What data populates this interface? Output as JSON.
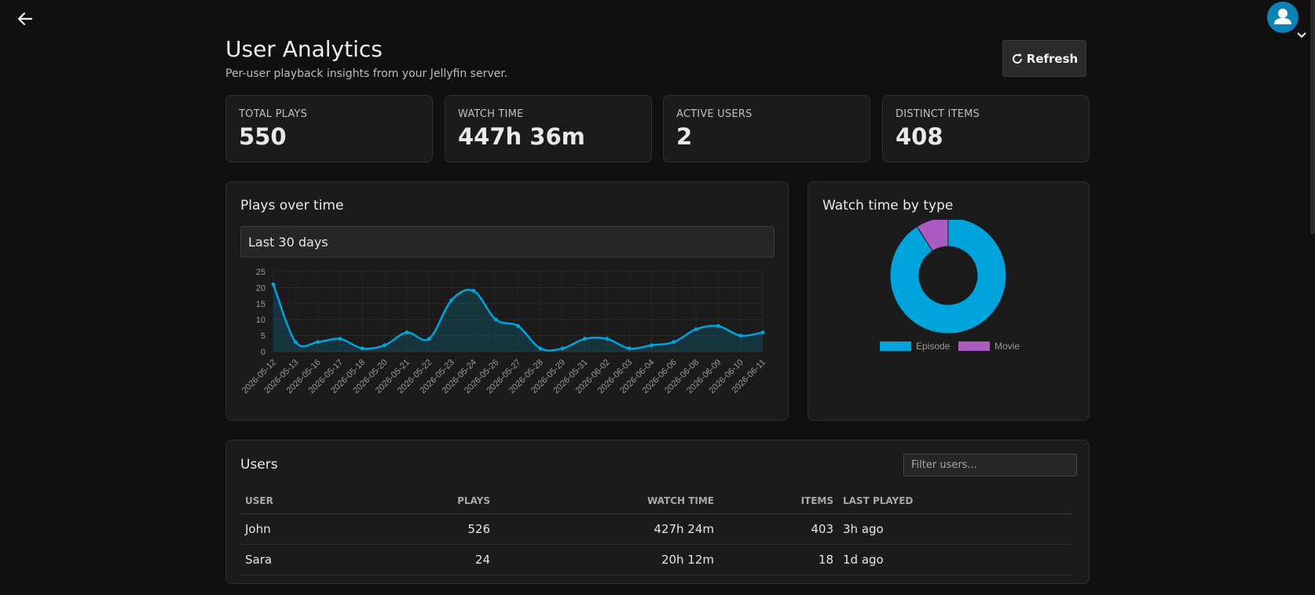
{
  "header": {
    "back_icon": "arrow-left-icon",
    "avatar_icon": "user-icon",
    "avatar_color": "#0c82b5"
  },
  "page": {
    "title": "User Analytics",
    "subtitle": "Per-user playback insights from your Jellyfin server.",
    "refresh_label": "Refresh",
    "refresh_icon": "refresh-icon"
  },
  "stats": [
    {
      "label": "TOTAL PLAYS",
      "value": "550"
    },
    {
      "label": "WATCH TIME",
      "value": "447h 36m"
    },
    {
      "label": "ACTIVE USERS",
      "value": "2"
    },
    {
      "label": "DISTINCT ITEMS",
      "value": "408"
    }
  ],
  "plays_panel": {
    "title": "Plays over time",
    "range_selected": "Last 30 days"
  },
  "watch_panel": {
    "title": "Watch time by type"
  },
  "chart_data": [
    {
      "type": "area",
      "x": [
        "2026-05-12",
        "2026-05-13",
        "2026-05-16",
        "2026-05-17",
        "2026-05-18",
        "2026-05-20",
        "2026-05-21",
        "2026-05-22",
        "2026-05-23",
        "2026-05-24",
        "2026-05-26",
        "2026-05-27",
        "2026-05-28",
        "2026-05-29",
        "2026-05-31",
        "2026-06-02",
        "2026-06-03",
        "2026-06-04",
        "2026-06-06",
        "2026-06-08",
        "2026-06-09",
        "2026-06-10",
        "2026-06-11"
      ],
      "series": [
        {
          "values": [
            21,
            3,
            3,
            4,
            1,
            2,
            6,
            4,
            16,
            19,
            10,
            8,
            1,
            1,
            4,
            4,
            1,
            2,
            3,
            7,
            8,
            5,
            6
          ]
        }
      ],
      "yticks": [
        0,
        5,
        10,
        15,
        20,
        25
      ],
      "ylim": [
        0,
        25
      ],
      "grid": true,
      "color": "#00a4dc"
    },
    {
      "type": "pie",
      "categories": [
        "Episode",
        "Movie"
      ],
      "values": [
        91,
        9
      ],
      "colors": [
        "#00a4dc",
        "#aa5cc3"
      ],
      "legend": "bottom"
    }
  ],
  "users_panel": {
    "title": "Users",
    "filter_placeholder": "Filter users...",
    "columns": {
      "user": "USER",
      "plays": "PLAYS",
      "watch_time": "WATCH TIME",
      "items": "ITEMS",
      "last_played": "LAST PLAYED"
    },
    "rows": [
      {
        "user": "John",
        "plays": "526",
        "watch_time": "427h 24m",
        "items": "403",
        "last_played": "3h ago"
      },
      {
        "user": "Sara",
        "plays": "24",
        "watch_time": "20h 12m",
        "items": "18",
        "last_played": "1d ago"
      }
    ]
  }
}
